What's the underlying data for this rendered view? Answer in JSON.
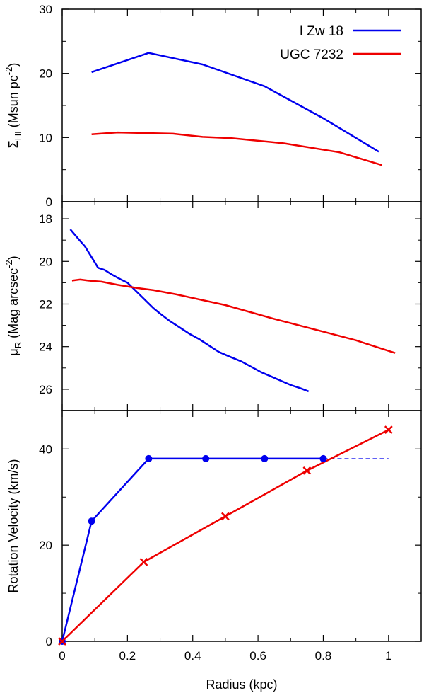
{
  "chart_data": [
    {
      "type": "line",
      "panel": "top",
      "ylabel": {
        "main": "Σ",
        "sub": "HI",
        "rest": " (Msun pc",
        "sup": "-2",
        "close": ")"
      },
      "ylim": [
        0,
        30
      ],
      "yticks": [
        0,
        10,
        20,
        30
      ],
      "xlim": [
        0,
        1.1
      ],
      "legend_position": "top-right",
      "series": [
        {
          "name": "I Zw 18",
          "color": "#0000ee",
          "x": [
            0.09,
            0.265,
            0.43,
            0.62,
            0.8,
            0.97
          ],
          "y": [
            20.2,
            23.2,
            21.4,
            18.0,
            13.0,
            7.8
          ]
        },
        {
          "name": "UGC 7232",
          "color": "#ee0000",
          "x": [
            0.09,
            0.17,
            0.34,
            0.43,
            0.52,
            0.68,
            0.85,
            0.98
          ],
          "y": [
            10.5,
            10.8,
            10.6,
            10.1,
            9.9,
            9.1,
            7.7,
            5.7
          ]
        }
      ]
    },
    {
      "type": "line",
      "panel": "middle",
      "ylabel": {
        "main": "μ",
        "sub": "R",
        "rest": " (Mag arcsec",
        "sup": "-2",
        "close": ")"
      },
      "ylim": [
        17.2,
        27.0
      ],
      "y_inverted": true,
      "yticks": [
        18,
        20,
        22,
        24,
        26
      ],
      "xlim": [
        0,
        1.1
      ],
      "series": [
        {
          "name": "I Zw 18",
          "color": "#0000ee",
          "x": [
            0.025,
            0.05,
            0.07,
            0.09,
            0.11,
            0.13,
            0.15,
            0.18,
            0.2,
            0.22,
            0.24,
            0.26,
            0.28,
            0.3,
            0.33,
            0.36,
            0.39,
            0.42,
            0.45,
            0.48,
            0.51,
            0.55,
            0.58,
            0.61,
            0.64,
            0.67,
            0.7,
            0.73,
            0.755
          ],
          "y": [
            18.5,
            18.95,
            19.3,
            19.8,
            20.3,
            20.4,
            20.6,
            20.85,
            21.0,
            21.3,
            21.6,
            21.9,
            22.2,
            22.45,
            22.8,
            23.1,
            23.4,
            23.65,
            23.95,
            24.25,
            24.45,
            24.7,
            24.95,
            25.2,
            25.4,
            25.6,
            25.8,
            25.95,
            26.1
          ]
        },
        {
          "name": "UGC 7232",
          "color": "#ee0000",
          "x": [
            0.03,
            0.055,
            0.08,
            0.12,
            0.17,
            0.23,
            0.28,
            0.35,
            0.5,
            0.65,
            0.8,
            0.9,
            1.02
          ],
          "y": [
            20.9,
            20.85,
            20.9,
            20.95,
            21.1,
            21.25,
            21.35,
            21.55,
            22.05,
            22.7,
            23.3,
            23.7,
            24.3
          ]
        }
      ]
    },
    {
      "type": "line",
      "panel": "bottom",
      "xlabel": "Radius (kpc)",
      "ylabel": "Rotation Velocity (km/s)",
      "xlim": [
        0,
        1.1
      ],
      "xticks": [
        0,
        0.2,
        0.4,
        0.6,
        0.8,
        1
      ],
      "xtick_labels": [
        "0",
        "0.2",
        "0.4",
        "0.6",
        "0.8",
        "1"
      ],
      "ylim": [
        0,
        48
      ],
      "yticks": [
        0,
        20,
        40
      ],
      "series": [
        {
          "name": "I Zw 18",
          "color": "#0000ee",
          "marker": "circle",
          "x": [
            0,
            0.09,
            0.265,
            0.44,
            0.62,
            0.8
          ],
          "y": [
            0,
            25,
            38,
            38,
            38,
            38
          ],
          "extrapolation": {
            "style": "dashed",
            "x": [
              0.8,
              1.0
            ],
            "y": [
              38,
              38
            ]
          }
        },
        {
          "name": "UGC 7232",
          "color": "#ee0000",
          "marker": "x",
          "x": [
            0,
            0.25,
            0.5,
            0.75,
            1.0
          ],
          "y": [
            0,
            16.5,
            26,
            35.5,
            44
          ]
        }
      ]
    }
  ]
}
